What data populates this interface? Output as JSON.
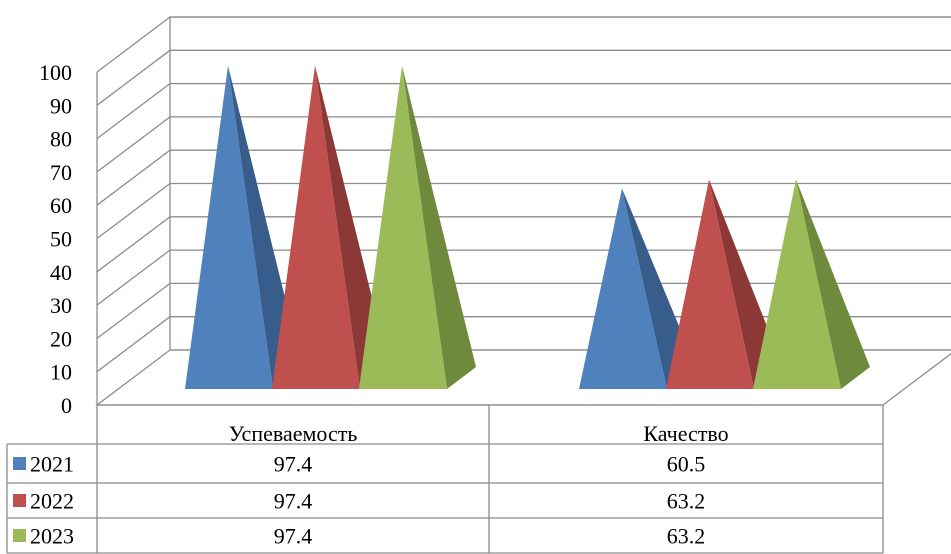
{
  "chart_data": {
    "type": "bar",
    "style": "3d-pyramid",
    "categories": [
      "Успеваемость",
      "Качество"
    ],
    "series": [
      {
        "name": "2021",
        "values": [
          97.4,
          60.5
        ],
        "value_labels": [
          "97.4",
          "60.5"
        ],
        "color": "#4f81bd",
        "shade": "#385d8a"
      },
      {
        "name": "2022",
        "values": [
          97.4,
          63.2
        ],
        "value_labels": [
          "97.4",
          "63.2"
        ],
        "color": "#c0504d",
        "shade": "#8c3836"
      },
      {
        "name": "2023",
        "values": [
          97.4,
          63.2
        ],
        "value_labels": [
          "97.4",
          "63.2"
        ],
        "color": "#9bbb59",
        "shade": "#6f8a3c"
      }
    ],
    "yticks": [
      0,
      10,
      20,
      30,
      40,
      50,
      60,
      70,
      80,
      90,
      100
    ],
    "ylim": [
      0,
      100
    ],
    "grid": true,
    "legend": "data-table"
  }
}
